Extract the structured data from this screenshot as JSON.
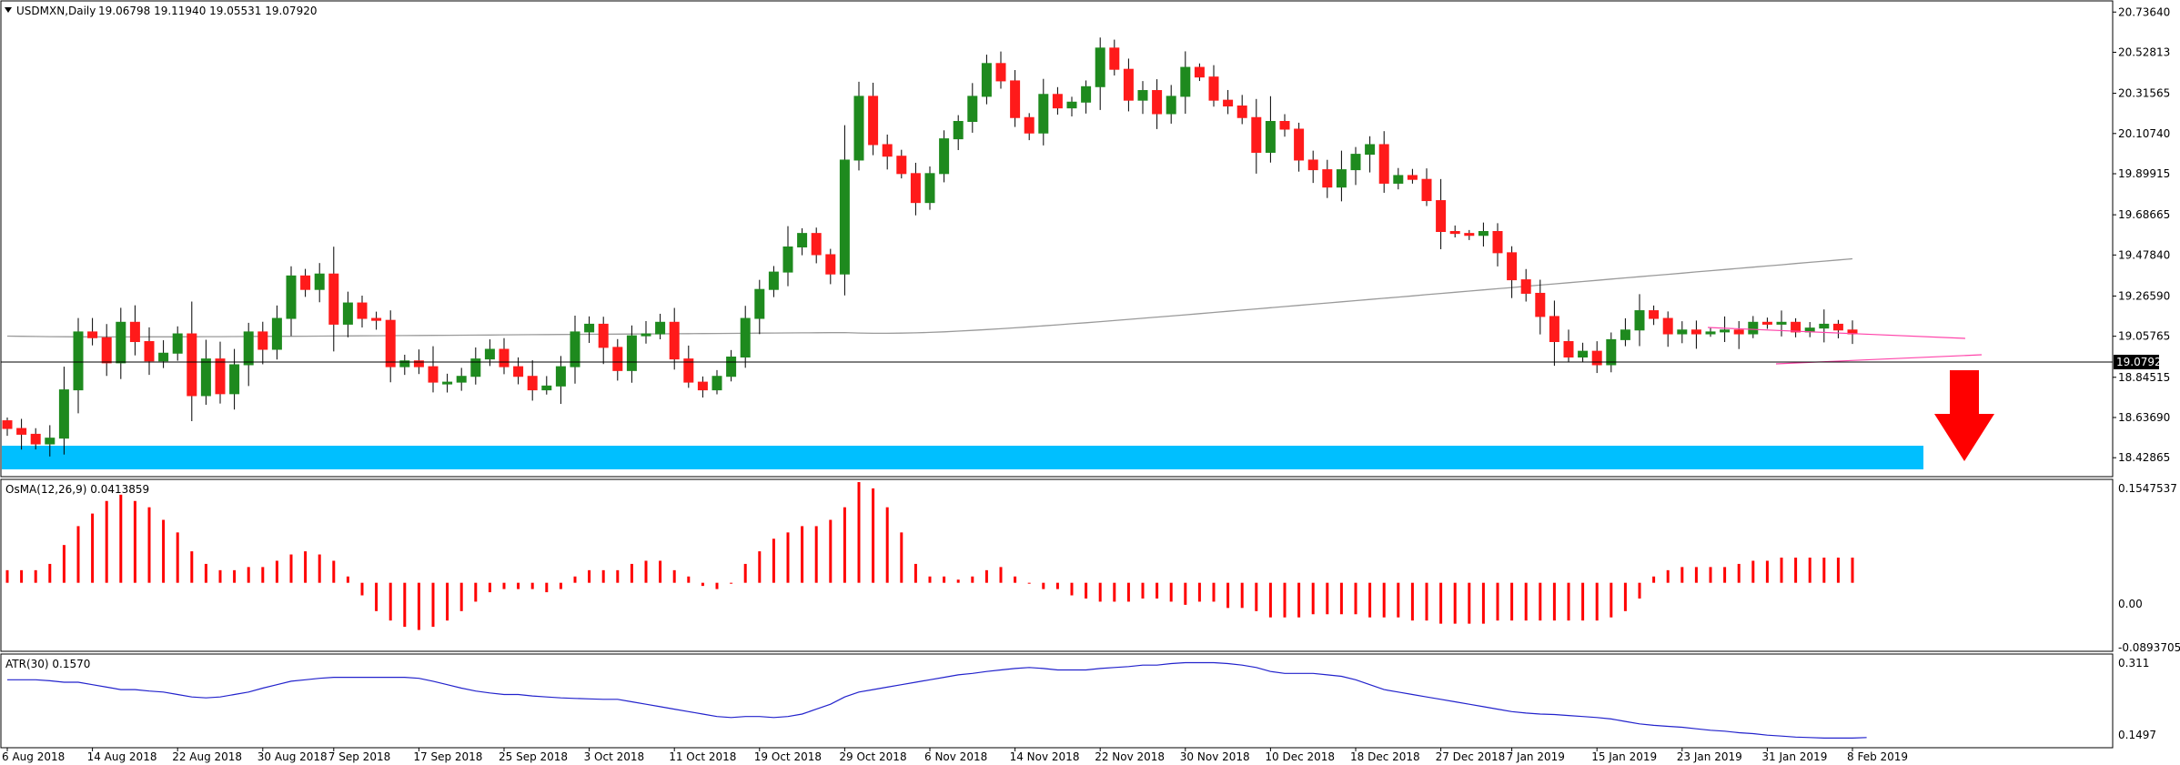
{
  "chart_data": [
    {
      "type": "candlestick",
      "title": "USDMXN,Daily",
      "ohlc_header": "19.06798 19.11940 19.05531 19.07920",
      "current_price": 19.0792,
      "current_price_label": "19.07920",
      "ylim": [
        18.34,
        20.78
      ],
      "price_ticks": [
        "20.73640",
        "20.52813",
        "20.31565",
        "20.10740",
        "19.89915",
        "19.68665",
        "19.47840",
        "19.26590",
        "19.05765",
        "18.84515",
        "18.63690",
        "18.42865"
      ],
      "date_ticks": [
        {
          "i": 0,
          "label": "6 Aug 2018"
        },
        {
          "i": 6,
          "label": "14 Aug 2018"
        },
        {
          "i": 12,
          "label": "22 Aug 2018"
        },
        {
          "i": 18,
          "label": "30 Aug 2018"
        },
        {
          "i": 23,
          "label": "7 Sep 2018"
        },
        {
          "i": 29,
          "label": "17 Sep 2018"
        },
        {
          "i": 35,
          "label": "25 Sep 2018"
        },
        {
          "i": 41,
          "label": "3 Oct 2018"
        },
        {
          "i": 47,
          "label": "11 Oct 2018"
        },
        {
          "i": 53,
          "label": "19 Oct 2018"
        },
        {
          "i": 59,
          "label": "29 Oct 2018"
        },
        {
          "i": 65,
          "label": "6 Nov 2018"
        },
        {
          "i": 71,
          "label": "14 Nov 2018"
        },
        {
          "i": 77,
          "label": "22 Nov 2018"
        },
        {
          "i": 83,
          "label": "30 Nov 2018"
        },
        {
          "i": 89,
          "label": "10 Dec 2018"
        },
        {
          "i": 95,
          "label": "18 Dec 2018"
        },
        {
          "i": 101,
          "label": "27 Dec 2018"
        },
        {
          "i": 106,
          "label": "7 Jan 2019"
        },
        {
          "i": 112,
          "label": "15 Jan 2019"
        },
        {
          "i": 118,
          "label": "23 Jan 2019"
        },
        {
          "i": 124,
          "label": "31 Jan 2019"
        },
        {
          "i": 130,
          "label": "8 Feb 2019"
        }
      ],
      "closes": [
        18.58,
        18.55,
        18.5,
        18.53,
        18.78,
        19.08,
        19.05,
        18.92,
        19.13,
        19.03,
        18.93,
        18.97,
        19.07,
        18.75,
        18.94,
        18.76,
        18.91,
        19.08,
        18.99,
        19.15,
        19.37,
        19.3,
        19.38,
        19.12,
        19.23,
        19.15,
        19.14,
        18.9,
        18.93,
        18.9,
        18.82,
        18.82,
        18.85,
        18.94,
        18.99,
        18.9,
        18.85,
        18.78,
        18.8,
        18.9,
        19.08,
        19.12,
        19.0,
        18.88,
        19.06,
        19.07,
        19.13,
        18.94,
        18.82,
        18.78,
        18.85,
        18.95,
        19.15,
        19.3,
        19.39,
        19.52,
        19.59,
        19.48,
        19.38,
        19.97,
        20.3,
        20.05,
        19.99,
        19.9,
        19.75,
        19.9,
        20.08,
        20.17,
        20.3,
        20.47,
        20.38,
        20.19,
        20.11,
        20.31,
        20.24,
        20.27,
        20.35,
        20.55,
        20.44,
        20.28,
        20.33,
        20.21,
        20.3,
        20.45,
        20.4,
        20.28,
        20.25,
        20.19,
        20.01,
        20.17,
        20.13,
        19.97,
        19.92,
        19.83,
        19.92,
        20.0,
        20.05,
        19.85,
        19.89,
        19.87,
        19.76,
        19.6,
        19.59,
        19.58,
        19.6,
        19.49,
        19.35,
        19.28,
        19.16,
        19.03,
        18.95,
        18.98,
        18.91,
        19.04,
        19.09,
        19.19,
        19.15,
        19.07,
        19.09,
        19.07,
        19.08,
        19.09,
        19.07,
        19.13,
        19.12,
        19.13,
        19.08,
        19.1,
        19.12,
        19.09,
        19.07
      ],
      "osma_label": "OsMA(12,26,9) 0.0413859",
      "osma_ticks": [
        "0.1547537",
        "0.00",
        "-0.0893705"
      ],
      "osma_ylim": [
        -0.106,
        0.16
      ],
      "osma": [
        0.02,
        0.02,
        0.02,
        0.03,
        0.06,
        0.09,
        0.11,
        0.13,
        0.14,
        0.13,
        0.12,
        0.1,
        0.08,
        0.05,
        0.03,
        0.02,
        0.02,
        0.025,
        0.025,
        0.035,
        0.045,
        0.05,
        0.045,
        0.035,
        0.01,
        -0.02,
        -0.045,
        -0.06,
        -0.07,
        -0.075,
        -0.07,
        -0.06,
        -0.045,
        -0.03,
        -0.015,
        -0.01,
        -0.01,
        -0.01,
        -0.015,
        -0.01,
        0.01,
        0.02,
        0.02,
        0.02,
        0.03,
        0.035,
        0.035,
        0.02,
        0.01,
        -0.005,
        -0.01,
        0.0,
        0.03,
        0.05,
        0.07,
        0.08,
        0.09,
        0.09,
        0.1,
        0.12,
        0.16,
        0.15,
        0.12,
        0.08,
        0.03,
        0.01,
        0.01,
        0.005,
        0.01,
        0.02,
        0.025,
        0.01,
        0.0,
        -0.01,
        -0.01,
        -0.02,
        -0.025,
        -0.03,
        -0.03,
        -0.03,
        -0.025,
        -0.025,
        -0.03,
        -0.035,
        -0.03,
        -0.03,
        -0.04,
        -0.04,
        -0.045,
        -0.055,
        -0.055,
        -0.055,
        -0.05,
        -0.05,
        -0.05,
        -0.05,
        -0.055,
        -0.055,
        -0.055,
        -0.06,
        -0.06,
        -0.065,
        -0.065,
        -0.065,
        -0.065,
        -0.06,
        -0.06,
        -0.06,
        -0.06,
        -0.06,
        -0.06,
        -0.06,
        -0.06,
        -0.055,
        -0.045,
        -0.025,
        0.01,
        0.02,
        0.025,
        0.025,
        0.025,
        0.025,
        0.03,
        0.035,
        0.035,
        0.04,
        0.04,
        0.04,
        0.04,
        0.04,
        0.04
      ],
      "atr_label": "ATR(30) 0.1570",
      "atr_ticks": [
        "0.311",
        "0.1497"
      ],
      "atr_ylim": [
        0.14,
        0.322
      ],
      "atr": [
        0.275,
        0.275,
        0.275,
        0.273,
        0.27,
        0.27,
        0.265,
        0.26,
        0.255,
        0.255,
        0.252,
        0.25,
        0.245,
        0.24,
        0.238,
        0.24,
        0.245,
        0.25,
        0.258,
        0.265,
        0.272,
        0.275,
        0.278,
        0.28,
        0.28,
        0.28,
        0.28,
        0.28,
        0.28,
        0.278,
        0.272,
        0.265,
        0.258,
        0.252,
        0.248,
        0.245,
        0.245,
        0.242,
        0.24,
        0.238,
        0.237,
        0.236,
        0.235,
        0.235,
        0.23,
        0.225,
        0.22,
        0.215,
        0.21,
        0.205,
        0.2,
        0.198,
        0.2,
        0.2,
        0.198,
        0.2,
        0.205,
        0.215,
        0.225,
        0.24,
        0.25,
        0.255,
        0.26,
        0.265,
        0.27,
        0.275,
        0.28,
        0.285,
        0.288,
        0.292,
        0.295,
        0.298,
        0.3,
        0.298,
        0.295,
        0.295,
        0.295,
        0.298,
        0.3,
        0.302,
        0.305,
        0.305,
        0.308,
        0.31,
        0.31,
        0.31,
        0.308,
        0.305,
        0.3,
        0.292,
        0.288,
        0.288,
        0.288,
        0.285,
        0.282,
        0.275,
        0.265,
        0.255,
        0.25,
        0.245,
        0.24,
        0.235,
        0.23,
        0.225,
        0.22,
        0.215,
        0.21,
        0.207,
        0.205,
        0.204,
        0.202,
        0.2,
        0.198,
        0.195,
        0.19,
        0.185,
        0.182,
        0.18,
        0.178,
        0.175,
        0.172,
        0.17,
        0.167,
        0.165,
        0.162,
        0.16,
        0.158,
        0.157,
        0.156,
        0.156,
        0.156,
        0.157
      ]
    }
  ],
  "colors": {
    "bull": "#1e8a1e",
    "bear": "#ff1a1a",
    "osma": "#ff0000",
    "atr": "#2222cc",
    "ma200": "#9a9a9a",
    "support_zone": "#00bfff",
    "trendline": "#ff44aa",
    "arrow": "#ff0000",
    "price_line": "#000000"
  },
  "icons": {
    "direction_arrow": "down-arrow-icon",
    "menu_triangle": "dropdown-triangle-icon"
  }
}
